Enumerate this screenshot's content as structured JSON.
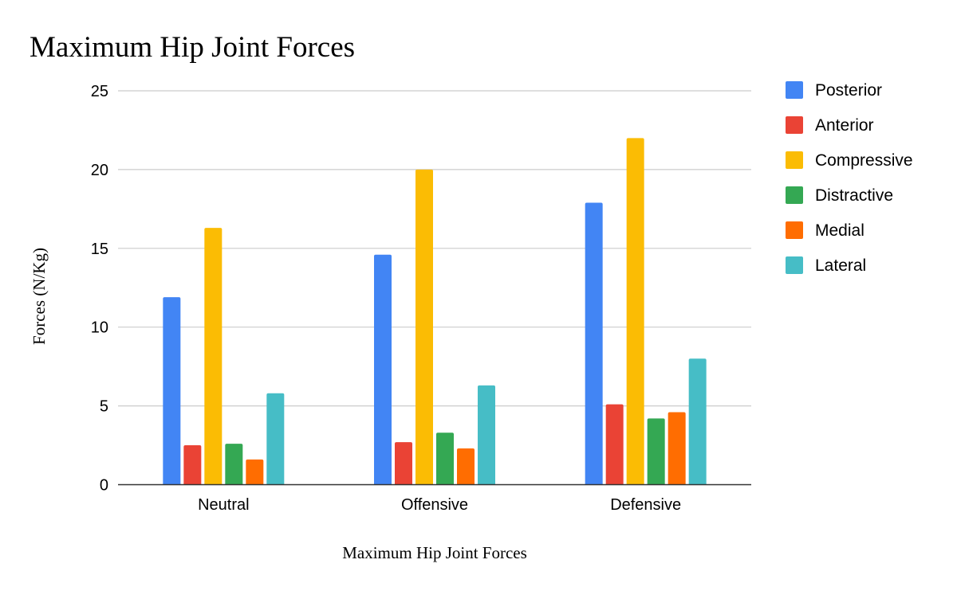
{
  "chart_data": {
    "type": "bar",
    "title": "Maximum Hip Joint Forces",
    "xlabel": "Maximum Hip Joint Forces",
    "ylabel": "Forces (N/Kg)",
    "categories": [
      "Neutral",
      "Offensive",
      "Defensive"
    ],
    "ylim": [
      0,
      25
    ],
    "yticks": [
      0,
      5,
      10,
      15,
      20,
      25
    ],
    "grid": true,
    "legend_position": "right",
    "series": [
      {
        "name": "Posterior",
        "color": "#4285f4",
        "values": [
          11.9,
          14.6,
          17.9
        ]
      },
      {
        "name": "Anterior",
        "color": "#ea4335",
        "values": [
          2.5,
          2.7,
          5.1
        ]
      },
      {
        "name": "Compressive",
        "color": "#fbbc04",
        "values": [
          16.3,
          20.0,
          22.0
        ]
      },
      {
        "name": "Distractive",
        "color": "#34a853",
        "values": [
          2.6,
          3.3,
          4.2
        ]
      },
      {
        "name": "Medial",
        "color": "#ff6d01",
        "values": [
          1.6,
          2.3,
          4.6
        ]
      },
      {
        "name": "Lateral",
        "color": "#46bdc6",
        "values": [
          5.8,
          6.3,
          8.0
        ]
      }
    ]
  }
}
